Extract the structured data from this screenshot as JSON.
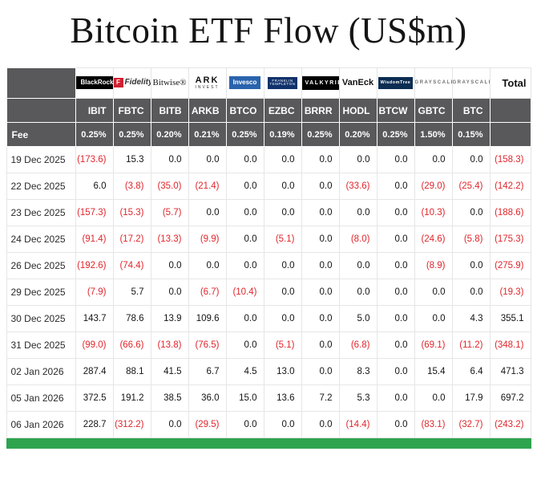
{
  "colors": {
    "header_bg": "#59585b",
    "negative": "#e0262c",
    "total_strip": "#2fa44f"
  },
  "chart_data": {
    "type": "table",
    "title": "Bitcoin ETF Flow (US$m)",
    "row_header": "Fee",
    "total_label": "Total",
    "providers": [
      {
        "name": "blackrock",
        "label": "BlackRock"
      },
      {
        "name": "fidelity",
        "label": "Fidelity",
        "icon": "F"
      },
      {
        "name": "bitwise",
        "label": "Bitwise®"
      },
      {
        "name": "ark",
        "label": "ARK",
        "sub": "INVEST"
      },
      {
        "name": "invesco",
        "label": "Invesco"
      },
      {
        "name": "franklin",
        "label": "FRANKLIN",
        "sub": "TEMPLETON"
      },
      {
        "name": "valkyrie",
        "label": "VALKYRIE"
      },
      {
        "name": "vaneck",
        "label": "VanEck"
      },
      {
        "name": "wisdomtree",
        "label": "WisdomTree"
      },
      {
        "name": "grayscale",
        "label": "GRAYSCALE"
      },
      {
        "name": "grayscale2",
        "label": "GRAYSCALE"
      }
    ],
    "tickers": [
      "IBIT",
      "FBTC",
      "BITB",
      "ARKB",
      "BTCO",
      "EZBC",
      "BRRR",
      "HODL",
      "BTCW",
      "GBTC",
      "BTC"
    ],
    "fees": [
      "0.25%",
      "0.25%",
      "0.20%",
      "0.21%",
      "0.25%",
      "0.19%",
      "0.25%",
      "0.20%",
      "0.25%",
      "1.50%",
      "0.15%"
    ],
    "rows": [
      {
        "date": "19 Dec 2025",
        "values": [
          "(173.6)",
          "15.3",
          "0.0",
          "0.0",
          "0.0",
          "0.0",
          "0.0",
          "0.0",
          "0.0",
          "0.0",
          "0.0"
        ],
        "total": "(158.3)"
      },
      {
        "date": "22 Dec 2025",
        "values": [
          "6.0",
          "(3.8)",
          "(35.0)",
          "(21.4)",
          "0.0",
          "0.0",
          "0.0",
          "(33.6)",
          "0.0",
          "(29.0)",
          "(25.4)"
        ],
        "total": "(142.2)"
      },
      {
        "date": "23 Dec 2025",
        "values": [
          "(157.3)",
          "(15.3)",
          "(5.7)",
          "0.0",
          "0.0",
          "0.0",
          "0.0",
          "0.0",
          "0.0",
          "(10.3)",
          "0.0"
        ],
        "total": "(188.6)"
      },
      {
        "date": "24 Dec 2025",
        "values": [
          "(91.4)",
          "(17.2)",
          "(13.3)",
          "(9.9)",
          "0.0",
          "(5.1)",
          "0.0",
          "(8.0)",
          "0.0",
          "(24.6)",
          "(5.8)"
        ],
        "total": "(175.3)"
      },
      {
        "date": "26 Dec 2025",
        "values": [
          "(192.6)",
          "(74.4)",
          "0.0",
          "0.0",
          "0.0",
          "0.0",
          "0.0",
          "0.0",
          "0.0",
          "(8.9)",
          "0.0"
        ],
        "total": "(275.9)"
      },
      {
        "date": "29 Dec 2025",
        "values": [
          "(7.9)",
          "5.7",
          "0.0",
          "(6.7)",
          "(10.4)",
          "0.0",
          "0.0",
          "0.0",
          "0.0",
          "0.0",
          "0.0"
        ],
        "total": "(19.3)"
      },
      {
        "date": "30 Dec 2025",
        "values": [
          "143.7",
          "78.6",
          "13.9",
          "109.6",
          "0.0",
          "0.0",
          "0.0",
          "5.0",
          "0.0",
          "0.0",
          "4.3"
        ],
        "total": "355.1"
      },
      {
        "date": "31 Dec 2025",
        "values": [
          "(99.0)",
          "(66.6)",
          "(13.8)",
          "(76.5)",
          "0.0",
          "(5.1)",
          "0.0",
          "(6.8)",
          "0.0",
          "(69.1)",
          "(11.2)"
        ],
        "total": "(348.1)"
      },
      {
        "date": "02 Jan 2026",
        "values": [
          "287.4",
          "88.1",
          "41.5",
          "6.7",
          "4.5",
          "13.0",
          "0.0",
          "8.3",
          "0.0",
          "15.4",
          "6.4"
        ],
        "total": "471.3"
      },
      {
        "date": "05 Jan 2026",
        "values": [
          "372.5",
          "191.2",
          "38.5",
          "36.0",
          "15.0",
          "13.6",
          "7.2",
          "5.3",
          "0.0",
          "0.0",
          "17.9"
        ],
        "total": "697.2"
      },
      {
        "date": "06 Jan 2026",
        "values": [
          "228.7",
          "(312.2)",
          "0.0",
          "(29.5)",
          "0.0",
          "0.0",
          "0.0",
          "(14.4)",
          "0.0",
          "(83.1)",
          "(32.7)"
        ],
        "total": "(243.2)"
      }
    ]
  }
}
